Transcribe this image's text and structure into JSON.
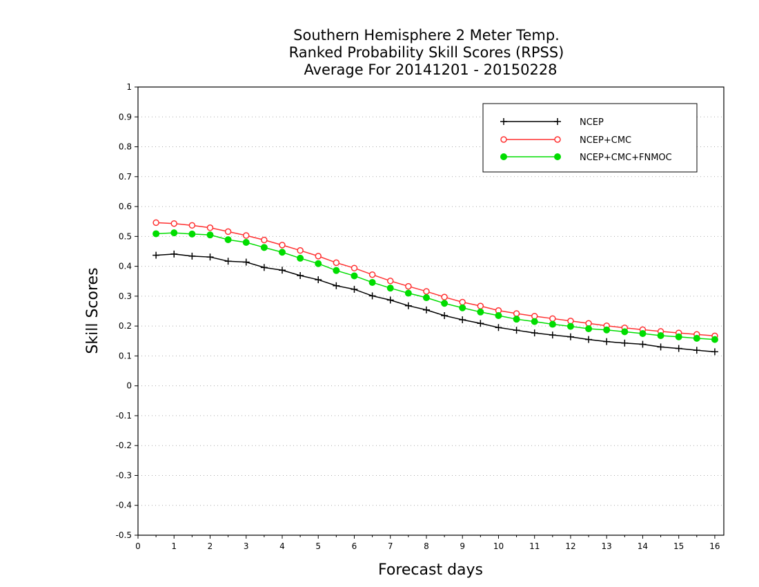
{
  "chart_data": {
    "type": "line",
    "title": [
      "Southern Hemisphere 2 Meter Temp.",
      "Ranked Probability Skill Scores (RPSS)",
      "Average For 20141201 - 20150228"
    ],
    "xlabel": "Forecast days",
    "ylabel": "Skill Scores",
    "xlim": [
      0,
      16.25
    ],
    "ylim": [
      -0.5,
      1
    ],
    "x_ticks": [
      0,
      1,
      2,
      3,
      4,
      5,
      6,
      7,
      8,
      9,
      10,
      11,
      12,
      13,
      14,
      15,
      16
    ],
    "y_ticks": [
      -0.5,
      -0.4,
      -0.3,
      -0.2,
      -0.1,
      0,
      0.1,
      0.2,
      0.3,
      0.4,
      0.5,
      0.6,
      0.7,
      0.8,
      0.9,
      1
    ],
    "y_tick_labels": [
      "-0.5",
      "-0.4",
      "-0.3",
      "-0.2",
      "-0.1",
      "0",
      "0.1",
      "0.2",
      "0.3",
      "0.4",
      "0.5",
      "0.6",
      "0.7",
      "0.8",
      "0.9",
      "1"
    ],
    "grid": "horizontal dotted",
    "legend_position": "top-right",
    "x": [
      0.5,
      1,
      1.5,
      2,
      2.5,
      3,
      3.5,
      4,
      4.5,
      5,
      5.5,
      6,
      6.5,
      7,
      7.5,
      8,
      8.5,
      9,
      9.5,
      10,
      10.5,
      11,
      11.5,
      12,
      12.5,
      13,
      13.5,
      14,
      14.5,
      15,
      15.5,
      16
    ],
    "series": [
      {
        "name": "NCEP",
        "color": "#000000",
        "marker": "plus",
        "values": [
          0.437,
          0.441,
          0.434,
          0.431,
          0.417,
          0.414,
          0.396,
          0.387,
          0.369,
          0.355,
          0.335,
          0.323,
          0.301,
          0.287,
          0.268,
          0.254,
          0.235,
          0.221,
          0.209,
          0.195,
          0.186,
          0.177,
          0.17,
          0.164,
          0.155,
          0.148,
          0.143,
          0.139,
          0.13,
          0.125,
          0.119,
          0.114
        ]
      },
      {
        "name": "NCEP+CMC",
        "color": "#ff3030",
        "marker": "open-circle",
        "values": [
          0.546,
          0.543,
          0.537,
          0.529,
          0.516,
          0.503,
          0.488,
          0.471,
          0.453,
          0.434,
          0.412,
          0.394,
          0.372,
          0.351,
          0.333,
          0.316,
          0.297,
          0.28,
          0.267,
          0.252,
          0.242,
          0.233,
          0.225,
          0.217,
          0.209,
          0.201,
          0.194,
          0.188,
          0.182,
          0.177,
          0.172,
          0.167
        ]
      },
      {
        "name": "NCEP+CMC+FNMOC",
        "color": "#00dd00",
        "marker": "filled-circle",
        "values": [
          0.509,
          0.512,
          0.508,
          0.505,
          0.489,
          0.48,
          0.463,
          0.447,
          0.427,
          0.409,
          0.386,
          0.368,
          0.346,
          0.327,
          0.31,
          0.295,
          0.276,
          0.261,
          0.247,
          0.235,
          0.223,
          0.215,
          0.206,
          0.199,
          0.191,
          0.187,
          0.181,
          0.175,
          0.168,
          0.164,
          0.159,
          0.155
        ]
      }
    ]
  }
}
